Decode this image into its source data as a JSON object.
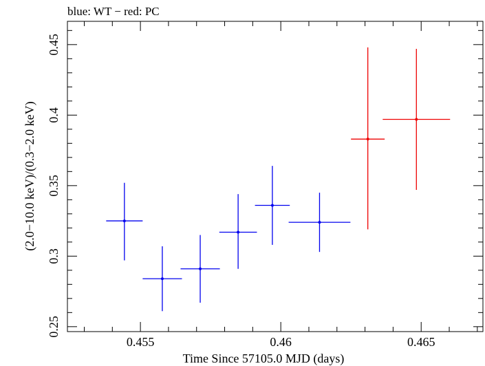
{
  "chart_data": {
    "type": "scatter",
    "title": "blue: WT − red: PC",
    "xlabel": "Time Since 57105.0 MJD (days)",
    "ylabel": "(2.0−10.0 keV)/(0.3−2.0 keV)",
    "xlim": [
      0.4524,
      0.4672
    ],
    "ylim": [
      0.2465,
      0.4665
    ],
    "x_ticks": [
      0.455,
      0.46,
      0.465
    ],
    "x_tick_labels": [
      "0.455",
      "0.46",
      "0.465"
    ],
    "y_ticks": [
      0.25,
      0.3,
      0.35,
      0.4,
      0.45
    ],
    "y_tick_labels": [
      "0.25",
      "0.3",
      "0.35",
      "0.4",
      "0.45"
    ],
    "grid": false,
    "series": [
      {
        "name": "WT",
        "color": "#0000ee",
        "points": [
          {
            "x": 0.45443,
            "y": 0.325,
            "xerr": 0.00065,
            "ylo": 0.297,
            "yhi": 0.352
          },
          {
            "x": 0.45578,
            "y": 0.284,
            "xerr": 0.0007,
            "ylo": 0.261,
            "yhi": 0.307
          },
          {
            "x": 0.45713,
            "y": 0.291,
            "xerr": 0.0007,
            "ylo": 0.267,
            "yhi": 0.315
          },
          {
            "x": 0.45848,
            "y": 0.317,
            "xerr": 0.00067,
            "ylo": 0.291,
            "yhi": 0.344
          },
          {
            "x": 0.4597,
            "y": 0.336,
            "xerr": 0.00062,
            "ylo": 0.308,
            "yhi": 0.364
          },
          {
            "x": 0.46138,
            "y": 0.324,
            "xerr": 0.0011,
            "ylo": 0.303,
            "yhi": 0.345
          }
        ]
      },
      {
        "name": "PC",
        "color": "#ee0000",
        "points": [
          {
            "x": 0.4631,
            "y": 0.383,
            "xerr": 0.0006,
            "ylo": 0.319,
            "yhi": 0.448
          },
          {
            "x": 0.46483,
            "y": 0.397,
            "xerr": 0.0012,
            "ylo": 0.347,
            "yhi": 0.447
          }
        ]
      }
    ]
  }
}
